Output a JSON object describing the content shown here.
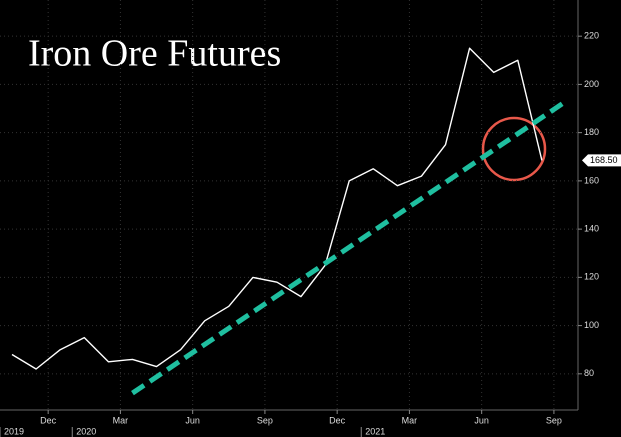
{
  "chart_data": {
    "type": "line",
    "title": "Iron Ore Futures",
    "x": [
      "2019-10",
      "2019-11",
      "2019-12",
      "2020-01",
      "2020-02",
      "2020-03",
      "2020-04",
      "2020-05",
      "2020-06",
      "2020-07",
      "2020-08",
      "2020-09",
      "2020-10",
      "2020-11",
      "2020-12",
      "2021-01",
      "2021-02",
      "2021-03",
      "2021-04",
      "2021-05",
      "2021-06",
      "2021-07",
      "2021-08"
    ],
    "series": [
      {
        "color": "#ffffff",
        "values": [
          88,
          82,
          90,
          95,
          85,
          86,
          83,
          90,
          102,
          108,
          120,
          118,
          112,
          125,
          160,
          165,
          158,
          162,
          175,
          215,
          205,
          210,
          168.5
        ]
      }
    ],
    "xlim": [
      "2019-10",
      "2021-10"
    ],
    "xticks": [
      {
        "value": "2019-12",
        "label": "Dec"
      },
      {
        "value": "2020-03",
        "label": "Mar"
      },
      {
        "value": "2020-06",
        "label": "Jun"
      },
      {
        "value": "2020-09",
        "label": "Sep"
      },
      {
        "value": "2020-12",
        "label": "Dec"
      },
      {
        "value": "2021-03",
        "label": "Mar"
      },
      {
        "value": "2021-06",
        "label": "Jun"
      },
      {
        "value": "2021-09",
        "label": "Sep"
      }
    ],
    "year_ticks": [
      {
        "value": "2019-10",
        "label": "2019"
      },
      {
        "value": "2020-01",
        "label": "2020"
      },
      {
        "value": "2021-01",
        "label": "2021"
      }
    ],
    "ylim": [
      65,
      235
    ],
    "yticks": [
      80,
      100,
      120,
      140,
      160,
      180,
      200,
      220
    ],
    "grid": true,
    "last_price": {
      "value": 168.5,
      "label": "168.50"
    },
    "trendline": {
      "x": [
        "2020-03",
        "2021-09"
      ],
      "values": [
        72,
        193
      ],
      "color": "#1fbfa0"
    }
  }
}
